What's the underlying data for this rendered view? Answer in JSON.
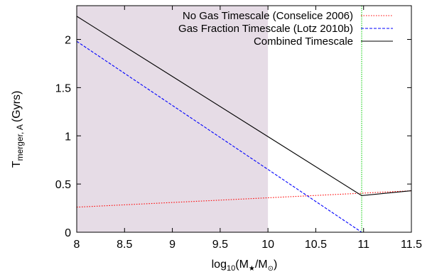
{
  "chart_data": {
    "type": "line",
    "title": "",
    "xlabel": {
      "base": "log",
      "base_sub": "10",
      "open": "(M",
      "star": "★",
      "slash": "/M",
      "sun": "⊙",
      "close": ")"
    },
    "ylabel": {
      "main": "T",
      "sub": "merger, A",
      "unit": "(Gyrs)"
    },
    "xlim": [
      8,
      11.5
    ],
    "ylim": [
      0,
      2.35
    ],
    "xticks": [
      8,
      8.5,
      9,
      9.5,
      10,
      10.5,
      11,
      11.5
    ],
    "xtick_labels": [
      "8",
      "8.5",
      "9",
      "9.5",
      "10",
      "10.5",
      "11",
      "11.5"
    ],
    "yticks": [
      0,
      0.5,
      1,
      1.5,
      2
    ],
    "ytick_labels": [
      "0",
      "0.5",
      "1",
      "1.5",
      "2"
    ],
    "grid": false,
    "legend_position": "top-right",
    "shaded_region": {
      "x": [
        8,
        10
      ],
      "color": "#e6dce6"
    },
    "vertical_line": {
      "x": 10.98,
      "color": "#00cc00"
    },
    "series": [
      {
        "name": "No Gas Timescale (Conselice 2006)",
        "color": "#ff0000",
        "dash": "dotted",
        "x": [
          8,
          11.5
        ],
        "y": [
          0.26,
          0.43
        ]
      },
      {
        "name": "Gas Fraction Timescale (Lotz 2010b)",
        "color": "#0000ff",
        "dash": "dashed",
        "x": [
          8,
          10.98
        ],
        "y": [
          1.98,
          0.0
        ]
      },
      {
        "name": "Combined Timescale",
        "color": "#000000",
        "dash": "solid",
        "x": [
          8,
          10.98,
          11.5
        ],
        "y": [
          2.24,
          0.38,
          0.43
        ]
      }
    ]
  }
}
